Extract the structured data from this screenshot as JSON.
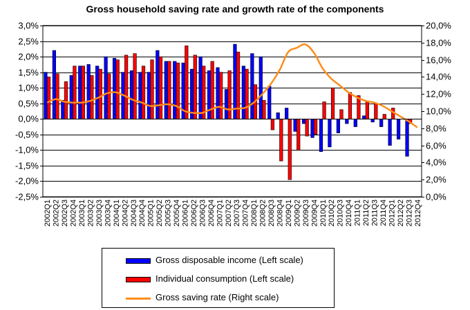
{
  "chart_data": {
    "type": "bar+line",
    "title": "Gross household  saving rate and growth rate of the components",
    "categories": [
      "2002Q1",
      "2002Q2",
      "2002Q3",
      "2002Q4",
      "2003Q1",
      "2003Q2",
      "2003Q3",
      "2003Q4",
      "2004Q1",
      "2004Q2",
      "2004Q3",
      "2004Q4",
      "2005Q1",
      "2005Q2",
      "2005Q3",
      "2005Q4",
      "2006Q1",
      "2006Q2",
      "2006Q3",
      "2006Q4",
      "2007Q1",
      "2007Q2",
      "2007Q3",
      "2007Q4",
      "2008Q1",
      "2008Q2",
      "2008Q3",
      "2008Q4",
      "2009Q1",
      "2009Q2",
      "2009Q3",
      "2009Q4",
      "2010Q1",
      "2010Q2",
      "2010Q3",
      "2010Q4",
      "2011Q1",
      "2011Q2",
      "2011Q3",
      "2011Q4",
      "2012Q1",
      "2012Q2",
      "2012Q3",
      "2012Q4"
    ],
    "left_axis": {
      "min": -2.5,
      "max": 3.0,
      "step": 0.5,
      "tick_labels": [
        "-2,5%",
        "-2,0%",
        "-1,5%",
        "-1,0%",
        "-0,5%",
        "0,0%",
        "0,5%",
        "1,0%",
        "1,5%",
        "2,0%",
        "2,5%",
        "3,0%"
      ]
    },
    "right_axis": {
      "min": 0,
      "max": 20,
      "step": 2,
      "tick_labels": [
        "0,0%",
        "2,0%",
        "4,0%",
        "6,0%",
        "8,0%",
        "10,0%",
        "12,0%",
        "14,0%",
        "16,0%",
        "18,0%",
        "20,0%"
      ]
    },
    "series": [
      {
        "name": "Gross disposable  income (Left scale)",
        "type": "bar",
        "axis": "left",
        "color": "#0000ff",
        "values": [
          1.5,
          2.2,
          0.6,
          1.4,
          1.7,
          1.75,
          1.7,
          2.0,
          1.95,
          1.5,
          1.55,
          1.5,
          1.5,
          2.2,
          1.85,
          1.85,
          1.8,
          1.6,
          2.0,
          1.55,
          1.65,
          0.95,
          2.4,
          1.7,
          2.1,
          2.0,
          1.05,
          0.2,
          0.35,
          -0.4,
          -0.15,
          -0.6,
          -1.05,
          -0.9,
          -0.45,
          -0.15,
          -0.25,
          0.1,
          -0.1,
          -0.25,
          -0.85,
          -0.65,
          -1.2,
          0.0
        ]
      },
      {
        "name": "Individual consumption  (Left scale)",
        "type": "bar",
        "axis": "left",
        "color": "#ff0000",
        "values": [
          1.35,
          1.45,
          1.2,
          1.7,
          1.7,
          1.4,
          1.6,
          1.45,
          1.9,
          2.05,
          2.1,
          1.7,
          1.9,
          2.0,
          1.85,
          1.8,
          2.35,
          2.05,
          1.7,
          1.85,
          1.5,
          1.55,
          2.15,
          1.6,
          1.1,
          0.6,
          -0.35,
          -1.35,
          -1.95,
          -1.0,
          -0.55,
          -0.5,
          0.55,
          1.0,
          0.3,
          0.85,
          0.75,
          0.55,
          0.5,
          0.15,
          0.35,
          0.0,
          -0.15,
          0.0
        ]
      },
      {
        "name": "Gross saving rate (Right scale)",
        "type": "line",
        "axis": "right",
        "color": "#ff8c1a",
        "values": [
          11.0,
          11.4,
          11.1,
          11.0,
          11.0,
          11.2,
          11.6,
          12.1,
          12.2,
          11.8,
          11.3,
          11.0,
          10.6,
          10.7,
          10.8,
          10.6,
          10.0,
          9.8,
          9.8,
          10.2,
          10.5,
          10.2,
          10.3,
          10.4,
          11.0,
          12.0,
          13.2,
          14.8,
          16.9,
          17.4,
          17.8,
          16.8,
          15.0,
          13.8,
          13.0,
          12.2,
          11.6,
          11.2,
          11.0,
          10.6,
          10.0,
          9.4,
          8.8,
          8.1
        ]
      }
    ],
    "legend_position": "bottom"
  }
}
